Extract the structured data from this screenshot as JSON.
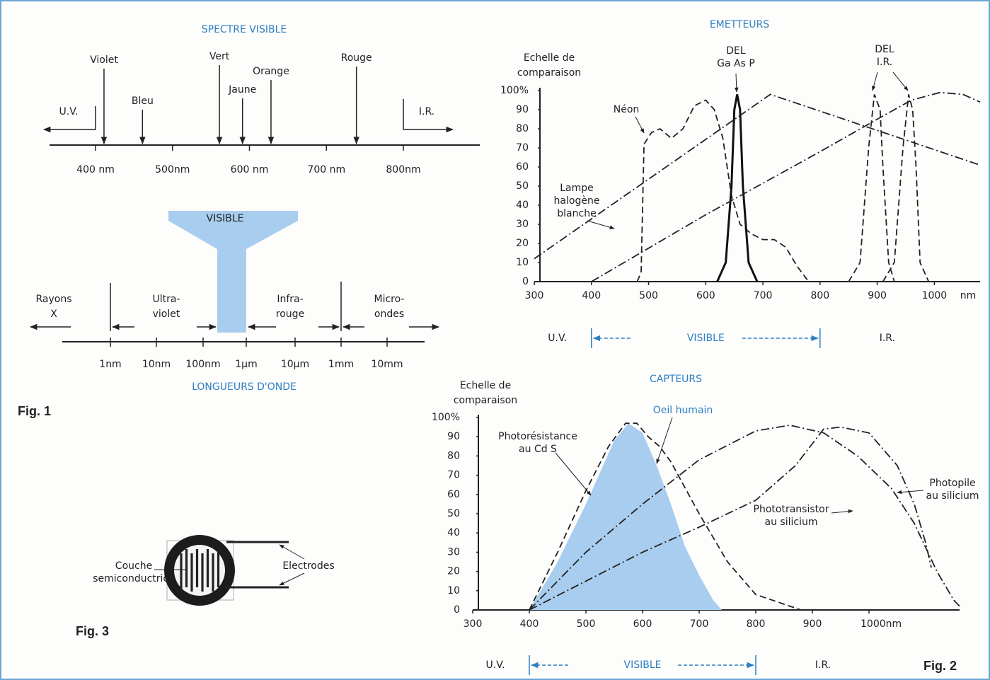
{
  "fig1": {
    "title": "SPECTRE VISIBLE",
    "uv": "U.V.",
    "ir": "I.R.",
    "xticks": [
      {
        "value": 400,
        "label": "400 nm"
      },
      {
        "value": 500,
        "label": "500nm"
      },
      {
        "value": 600,
        "label": "600 nm"
      },
      {
        "value": 700,
        "label": "700 nm"
      },
      {
        "value": 800,
        "label": "800nm"
      }
    ],
    "colors": [
      {
        "name": "Violet",
        "nm": 411
      },
      {
        "name": "Bleu",
        "nm": 461
      },
      {
        "name": "Vert",
        "nm": 561
      },
      {
        "name": "Jaune",
        "nm": 591
      },
      {
        "name": "Orange",
        "nm": 628
      },
      {
        "name": "Rouge",
        "nm": 739
      }
    ],
    "wave_title": "LONGUEURS D'ONDE",
    "visible": "VISIBLE",
    "regions": [
      [
        "Rayons",
        "X"
      ],
      [
        "Ultra-",
        "violet"
      ],
      [
        "Infra-",
        "rouge"
      ],
      [
        "Micro-",
        "ondes"
      ]
    ],
    "wave_ticks": [
      "1nm",
      "10nm",
      "100nm",
      "1µm",
      "10µm",
      "1mm",
      "10mm"
    ],
    "caption": "Fig. 1"
  },
  "fig3": {
    "layer": [
      "Couche",
      "semiconductrice"
    ],
    "electrodes": "Electrodes",
    "caption": "Fig. 3"
  },
  "fig2": {
    "caption": "Fig. 2"
  },
  "chart_data": [
    {
      "type": "line",
      "title": "EMETTEURS",
      "y_label": [
        "Echelle de",
        "comparaison"
      ],
      "x_unit": "nm",
      "xlim": [
        300,
        1080
      ],
      "ylim": [
        0,
        100
      ],
      "xticks": [
        300,
        400,
        500,
        600,
        700,
        800,
        900,
        1000
      ],
      "yticks": [
        0,
        10,
        20,
        30,
        40,
        50,
        60,
        70,
        80,
        90,
        {
          "value": 100,
          "label": "100%"
        }
      ],
      "series": [
        {
          "label": [
            "Néon"
          ],
          "color": "#222222",
          "style": "dash",
          "x": [
            480,
            487,
            492,
            505,
            520,
            540,
            560,
            580,
            600,
            615,
            630,
            645,
            660,
            680,
            700,
            720,
            740,
            760,
            780
          ],
          "values": [
            0,
            5,
            72,
            78,
            80,
            75,
            80,
            92,
            95,
            90,
            75,
            45,
            30,
            25,
            22,
            22,
            18,
            8,
            0
          ]
        },
        {
          "label": [
            "DEL",
            "Ga As P"
          ],
          "color": "#111111",
          "style": "solid",
          "x": [
            620,
            635,
            645,
            650,
            655,
            660,
            665,
            675,
            690
          ],
          "values": [
            0,
            10,
            50,
            90,
            98,
            90,
            50,
            10,
            0
          ]
        },
        {
          "label": [
            "DEL",
            "I.R."
          ],
          "color": "#222222",
          "style": "dash",
          "x": [
            850,
            870,
            885,
            895,
            905,
            910,
            920,
            930
          ],
          "values": [
            0,
            10,
            70,
            98,
            90,
            60,
            10,
            0
          ]
        },
        {
          "color": "#222222",
          "style": "dash",
          "x": [
            910,
            930,
            945,
            955,
            962,
            968,
            975,
            990
          ],
          "values": [
            0,
            10,
            70,
            98,
            90,
            60,
            10,
            0
          ]
        },
        {
          "label": [
            "Lampe",
            "halogène",
            "blanche"
          ],
          "color": "#222222",
          "style": "dashdot",
          "x": [
            300,
            713,
            1080
          ],
          "values": [
            12,
            98,
            61
          ]
        },
        {
          "color": "#222222",
          "style": "dashdot",
          "x": [
            400,
            600,
            800,
            900,
            960,
            1010,
            1050,
            1080
          ],
          "values": [
            0,
            35,
            68,
            85,
            95,
            99,
            98,
            94
          ]
        }
      ],
      "band": {
        "left": "U.V.",
        "center": "VISIBLE",
        "right": "I.R.",
        "range": [
          400,
          800
        ]
      }
    },
    {
      "type": "line",
      "title": "CAPTEURS",
      "y_label": [
        "Echelle de",
        "comparaison"
      ],
      "xlim": [
        300,
        1160
      ],
      "ylim": [
        0,
        100
      ],
      "xticks": [
        300,
        400,
        500,
        600,
        700,
        800,
        900,
        {
          "value": 1000,
          "label": "1000nm"
        }
      ],
      "yticks": [
        0,
        10,
        20,
        30,
        40,
        50,
        60,
        70,
        80,
        90,
        {
          "value": 100,
          "label": "100%"
        }
      ],
      "series": [
        {
          "label": [
            "Oeil humain"
          ],
          "color": "#a9cdee",
          "style": "solid",
          "fill": true,
          "x": [
            400,
            450,
            500,
            550,
            575,
            600,
            625,
            650,
            675,
            700,
            725,
            740
          ],
          "values": [
            0,
            25,
            55,
            88,
            97,
            92,
            75,
            55,
            33,
            18,
            5,
            0
          ]
        },
        {
          "label": [
            "Photorésistance",
            "au Cd S"
          ],
          "color": "#222222",
          "style": "dash",
          "x": [
            400,
            450,
            500,
            540,
            570,
            590,
            610,
            630,
            650,
            700,
            750,
            800,
            880
          ],
          "values": [
            0,
            30,
            62,
            85,
            97,
            97,
            90,
            85,
            77,
            50,
            25,
            8,
            0
          ]
        },
        {
          "label": [
            "Phototransistor",
            "au silicium"
          ],
          "color": "#222222",
          "style": "dashdot",
          "x": [
            400,
            500,
            600,
            700,
            800,
            870,
            920,
            950,
            1000,
            1050,
            1080,
            1100,
            1110
          ],
          "values": [
            0,
            15,
            30,
            43,
            57,
            75,
            94,
            95,
            92,
            75,
            55,
            35,
            22
          ]
        },
        {
          "label": [
            "Photopile",
            "au silicium"
          ],
          "color": "#222222",
          "style": "dashdot",
          "x": [
            400,
            500,
            600,
            700,
            800,
            860,
            920,
            980,
            1040,
            1080,
            1120,
            1150,
            1160
          ],
          "values": [
            0,
            30,
            55,
            78,
            93,
            96,
            92,
            80,
            63,
            45,
            20,
            5,
            2
          ]
        }
      ],
      "band": {
        "left": "U.V.",
        "center": "VISIBLE",
        "right": "I.R.",
        "range": [
          400,
          800
        ]
      }
    }
  ]
}
